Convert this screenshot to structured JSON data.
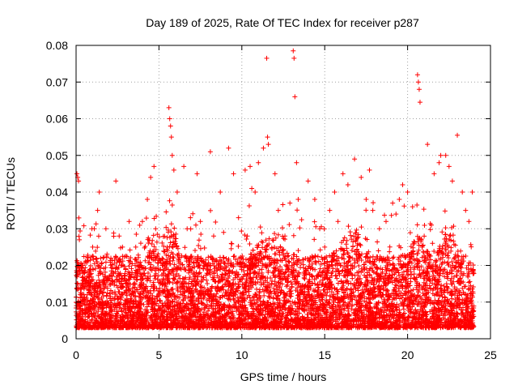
{
  "chart_data": {
    "type": "scatter",
    "title": "Day 189 of 2025, Rate Of TEC Index for receiver p287",
    "xlabel": "GPS time / hours",
    "ylabel": "ROTI / TECUs",
    "xlim": [
      0,
      25
    ],
    "ylim": [
      0,
      0.08
    ],
    "x_ticks": [
      "0",
      "5",
      "10",
      "15",
      "20",
      "25"
    ],
    "y_ticks": [
      "0",
      "0.01",
      "0.02",
      "0.03",
      "0.04",
      "0.05",
      "0.06",
      "0.07",
      "0.08"
    ],
    "grid": true,
    "marker": "+",
    "series": [
      {
        "color": "#ff0000",
        "x": [
          0.05,
          0.1,
          0.15,
          0.2,
          0.3,
          0.6,
          1.0,
          1.3,
          1.4,
          1.8,
          2.1,
          2.4,
          2.6,
          3.2,
          3.6,
          4.0,
          4.3,
          4.5,
          4.7,
          4.8,
          5.2,
          5.6,
          5.65,
          5.7,
          5.75,
          5.8,
          5.9,
          6.1,
          6.5,
          6.7,
          7.3,
          7.5,
          8.1,
          8.3,
          8.7,
          9.2,
          9.5,
          9.8,
          10.2,
          10.5,
          10.8,
          11.0,
          11.3,
          11.5,
          11.55,
          11.6,
          12.0,
          12.2,
          12.6,
          13.1,
          13.15,
          13.2,
          13.3,
          13.4,
          14.0,
          14.4,
          14.7,
          15.0,
          15.3,
          15.6,
          16.1,
          16.4,
          16.8,
          17.2,
          17.5,
          17.9,
          18.3,
          18.7,
          19.1,
          19.5,
          19.7,
          20.0,
          20.3,
          20.6,
          20.65,
          20.7,
          20.75,
          21.2,
          21.6,
          22.0,
          22.3,
          22.5,
          22.7,
          23.0,
          23.3,
          23.7,
          23.9,
          0.4,
          1.1,
          2.8,
          3.9,
          6.9,
          8.9,
          10.6,
          12.9,
          15.8,
          17.7,
          19.3,
          21.9,
          23.5
        ],
        "y": [
          0.045,
          0.044,
          0.043,
          0.027,
          0.012,
          0.015,
          0.025,
          0.035,
          0.04,
          0.03,
          0.022,
          0.043,
          0.028,
          0.032,
          0.025,
          0.032,
          0.038,
          0.044,
          0.047,
          0.03,
          0.02,
          0.063,
          0.06,
          0.058,
          0.055,
          0.05,
          0.046,
          0.04,
          0.047,
          0.03,
          0.045,
          0.032,
          0.051,
          0.028,
          0.04,
          0.052,
          0.045,
          0.033,
          0.046,
          0.047,
          0.04,
          0.048,
          0.052,
          0.0765,
          0.055,
          0.053,
          0.045,
          0.035,
          0.028,
          0.0785,
          0.0765,
          0.066,
          0.048,
          0.038,
          0.043,
          0.038,
          0.03,
          0.025,
          0.035,
          0.04,
          0.045,
          0.042,
          0.049,
          0.044,
          0.038,
          0.035,
          0.03,
          0.032,
          0.037,
          0.038,
          0.042,
          0.04,
          0.036,
          0.072,
          0.07,
          0.068,
          0.0645,
          0.053,
          0.045,
          0.05,
          0.05,
          0.047,
          0.043,
          0.0555,
          0.04,
          0.032,
          0.04,
          0.02,
          0.03,
          0.025,
          0.02,
          0.033,
          0.029,
          0.041,
          0.037,
          0.032,
          0.046,
          0.034,
          0.048,
          0.035
        ]
      }
    ],
    "dense_band": {
      "description_hours": [
        0,
        24
      ],
      "baseline_low": 0.003,
      "baseline_high": 0.02
    }
  }
}
